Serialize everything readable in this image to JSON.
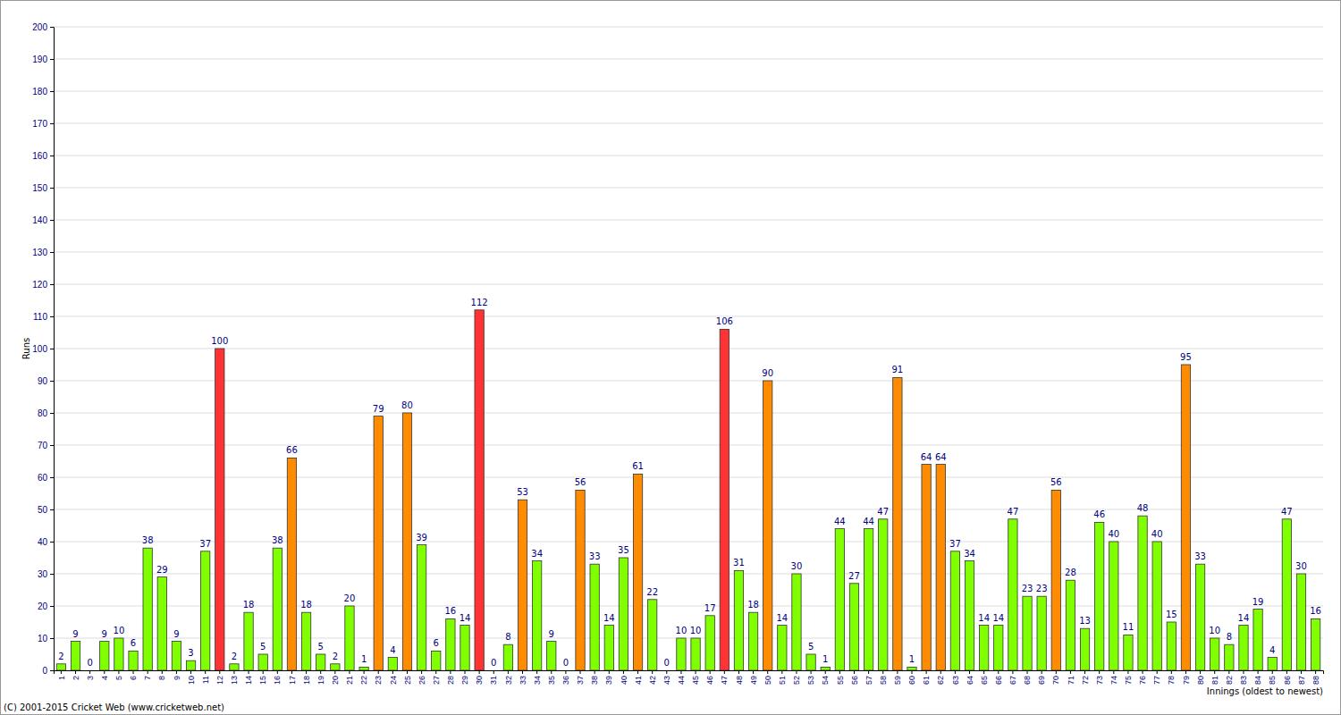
{
  "chart_data": {
    "type": "bar",
    "x_label": "Innings (oldest to newest)",
    "y_label": "Runs",
    "annotations": [
      "(C) 2001-2015 Cricket Web (www.cricketweb.net)"
    ],
    "categories": [
      "1",
      "2",
      "3",
      "4",
      "5",
      "6",
      "7",
      "8",
      "9",
      "10",
      "11",
      "12",
      "13",
      "14",
      "15",
      "16",
      "17",
      "18",
      "19",
      "20",
      "21",
      "22",
      "23",
      "24",
      "25",
      "26",
      "27",
      "28",
      "29",
      "30",
      "31",
      "32",
      "33",
      "34",
      "35",
      "36",
      "37",
      "38",
      "39",
      "40",
      "41",
      "42",
      "43",
      "44",
      "45",
      "46",
      "47",
      "48",
      "49",
      "50",
      "51",
      "52",
      "53",
      "54",
      "55",
      "56",
      "57",
      "58",
      "59",
      "60",
      "61",
      "62",
      "63",
      "64",
      "65",
      "66",
      "67",
      "68",
      "69",
      "70",
      "71",
      "72",
      "73",
      "74",
      "75",
      "76",
      "77",
      "78",
      "79",
      "80",
      "81",
      "82",
      "83",
      "84",
      "85",
      "86",
      "87",
      "88"
    ],
    "values": [
      2,
      9,
      0,
      9,
      10,
      6,
      38,
      29,
      9,
      3,
      37,
      100,
      2,
      18,
      5,
      38,
      66,
      18,
      5,
      2,
      20,
      1,
      79,
      4,
      80,
      39,
      6,
      16,
      14,
      112,
      0,
      8,
      53,
      34,
      9,
      0,
      56,
      33,
      14,
      35,
      61,
      22,
      0,
      10,
      10,
      17,
      106,
      31,
      18,
      90,
      14,
      30,
      5,
      1,
      44,
      27,
      44,
      47,
      91,
      1,
      64,
      64,
      37,
      34,
      14,
      14,
      47,
      23,
      23,
      56,
      28,
      13,
      46,
      40,
      11,
      48,
      40,
      15,
      95,
      33,
      10,
      8,
      14,
      19,
      4,
      47,
      30,
      16
    ],
    "colors": [
      "#80ff00",
      "#80ff00",
      "#80ff00",
      "#80ff00",
      "#80ff00",
      "#80ff00",
      "#80ff00",
      "#80ff00",
      "#80ff00",
      "#80ff00",
      "#80ff00",
      "#ff3333",
      "#80ff00",
      "#80ff00",
      "#80ff00",
      "#80ff00",
      "#ff8c00",
      "#80ff00",
      "#80ff00",
      "#80ff00",
      "#80ff00",
      "#80ff00",
      "#ff8c00",
      "#80ff00",
      "#ff8c00",
      "#80ff00",
      "#80ff00",
      "#80ff00",
      "#80ff00",
      "#ff3333",
      "#80ff00",
      "#80ff00",
      "#ff8c00",
      "#80ff00",
      "#80ff00",
      "#80ff00",
      "#ff8c00",
      "#80ff00",
      "#80ff00",
      "#80ff00",
      "#ff8c00",
      "#80ff00",
      "#80ff00",
      "#80ff00",
      "#80ff00",
      "#80ff00",
      "#ff3333",
      "#80ff00",
      "#80ff00",
      "#ff8c00",
      "#80ff00",
      "#80ff00",
      "#80ff00",
      "#80ff00",
      "#80ff00",
      "#80ff00",
      "#80ff00",
      "#80ff00",
      "#ff8c00",
      "#80ff00",
      "#ff8c00",
      "#ff8c00",
      "#80ff00",
      "#80ff00",
      "#80ff00",
      "#80ff00",
      "#80ff00",
      "#80ff00",
      "#80ff00",
      "#ff8c00",
      "#80ff00",
      "#80ff00",
      "#80ff00",
      "#80ff00",
      "#80ff00",
      "#80ff00",
      "#80ff00",
      "#80ff00",
      "#ff8c00",
      "#80ff00",
      "#80ff00",
      "#80ff00",
      "#80ff00",
      "#80ff00",
      "#80ff00",
      "#80ff00",
      "#80ff00",
      "#80ff00"
    ],
    "ylim": [
      0,
      200
    ],
    "yticks": [
      0,
      10,
      20,
      30,
      40,
      50,
      60,
      70,
      80,
      90,
      100,
      110,
      120,
      130,
      140,
      150,
      160,
      170,
      180,
      190,
      200
    ],
    "grid": true,
    "data_labels": true
  }
}
